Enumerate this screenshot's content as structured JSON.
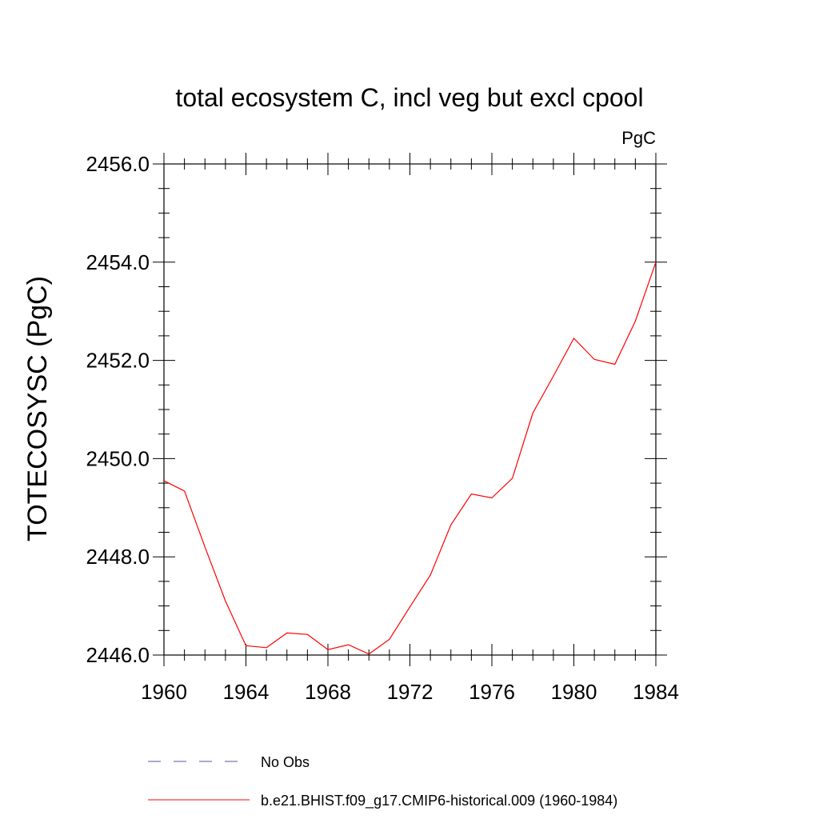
{
  "chart_data": {
    "type": "line",
    "title": "total ecosystem C, incl veg but excl cpool",
    "units_label": "PgC",
    "ylabel": "TOTECOSYSC  (PgC)",
    "xlabel": "",
    "xlim": [
      1960,
      1984
    ],
    "ylim": [
      2446.0,
      2456.0
    ],
    "x_ticks": [
      1960,
      1964,
      1968,
      1972,
      1976,
      1980,
      1984
    ],
    "x_tick_labels": [
      "1960",
      "1964",
      "1968",
      "1972",
      "1976",
      "1980",
      "1984"
    ],
    "y_ticks": [
      2446.0,
      2448.0,
      2450.0,
      2452.0,
      2454.0,
      2456.0
    ],
    "y_tick_labels": [
      "2446.0",
      "2448.0",
      "2450.0",
      "2452.0",
      "2454.0",
      "2456.0"
    ],
    "grid": false,
    "legend_position": "bottom",
    "series": [
      {
        "name": "No Obs",
        "color": "#5555aa",
        "dash": true,
        "x": [],
        "y": []
      },
      {
        "name": "b.e21.BHIST.f09_g17.CMIP6-historical.009 (1960-1984)",
        "color": "#ff0000",
        "dash": false,
        "x": [
          1960,
          1961,
          1962,
          1963,
          1964,
          1965,
          1966,
          1967,
          1968,
          1969,
          1970,
          1971,
          1972,
          1973,
          1974,
          1975,
          1976,
          1977,
          1978,
          1979,
          1980,
          1981,
          1982,
          1983,
          1984
        ],
        "y": [
          2449.55,
          2449.34,
          2448.2,
          2447.1,
          2446.19,
          2446.15,
          2446.45,
          2446.42,
          2446.11,
          2446.21,
          2446.02,
          2446.32,
          2446.98,
          2447.63,
          2448.65,
          2449.28,
          2449.2,
          2449.6,
          2450.93,
          2451.68,
          2452.45,
          2452.02,
          2451.92,
          2452.8,
          2454.0
        ]
      }
    ]
  }
}
